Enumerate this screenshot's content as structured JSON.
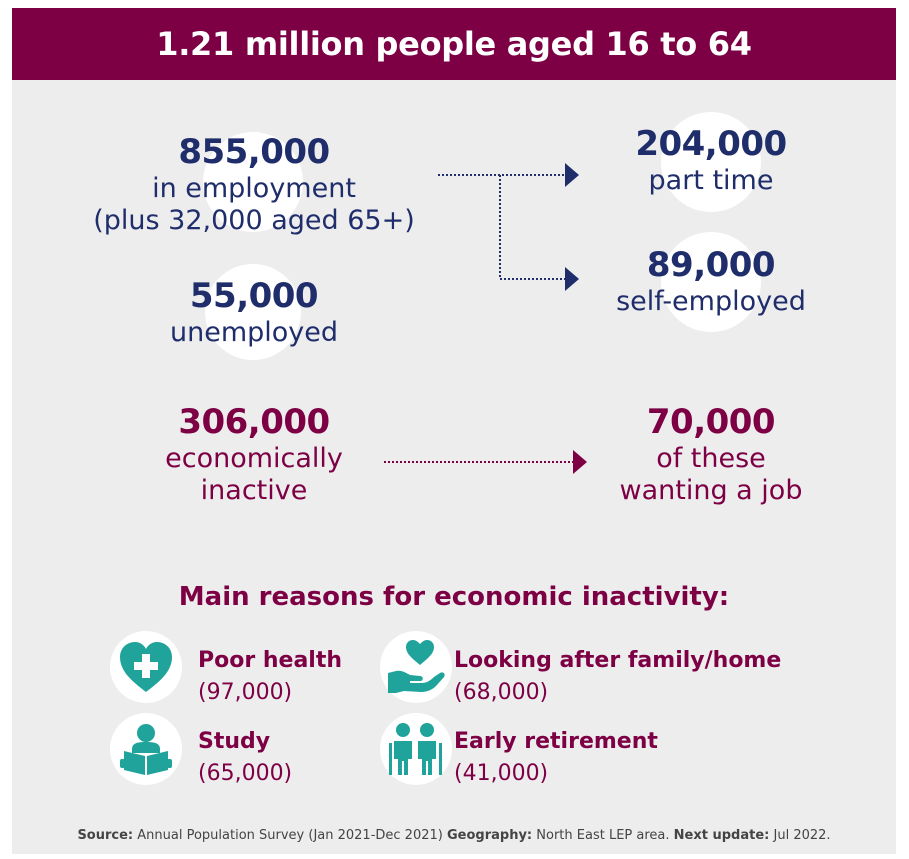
{
  "header": {
    "title": "1.21 million people aged 16 to 64"
  },
  "stats": {
    "employment": {
      "number": "855,000",
      "line1": "in employment",
      "line2": "(plus 32,000 aged 65+)"
    },
    "unemployed": {
      "number": "55,000",
      "label": "unemployed"
    },
    "inactive": {
      "number": "306,000",
      "line1": "economically",
      "line2": "inactive"
    },
    "part_time": {
      "number": "204,000",
      "label": "part time"
    },
    "self_employed": {
      "number": "89,000",
      "label": "self-employed"
    },
    "wanting_job": {
      "number": "70,000",
      "line1": "of these",
      "line2": "wanting a job"
    }
  },
  "reasons": {
    "title": "Main reasons for economic inactivity:",
    "items": [
      {
        "label": "Poor health",
        "value": "(97,000)",
        "icon": "heart-medical-icon"
      },
      {
        "label": "Looking after family/home",
        "value": "(68,000)",
        "icon": "hand-heart-icon"
      },
      {
        "label": "Study",
        "value": "(65,000)",
        "icon": "reading-person-icon"
      },
      {
        "label": "Early retirement",
        "value": "(41,000)",
        "icon": "elderly-couple-icon"
      }
    ]
  },
  "source": {
    "source_label": "Source:",
    "source_text": "Annual Population Survey (Jan 2021-Dec 2021)",
    "geo_label": "Geography:",
    "geo_text": "North East LEP area.",
    "update_label": "Next update:",
    "update_text": "Jul 2022."
  },
  "colors": {
    "maroon": "#7d0045",
    "navy": "#1f2d6b",
    "teal": "#1fa39a",
    "panel": "#ededed"
  }
}
